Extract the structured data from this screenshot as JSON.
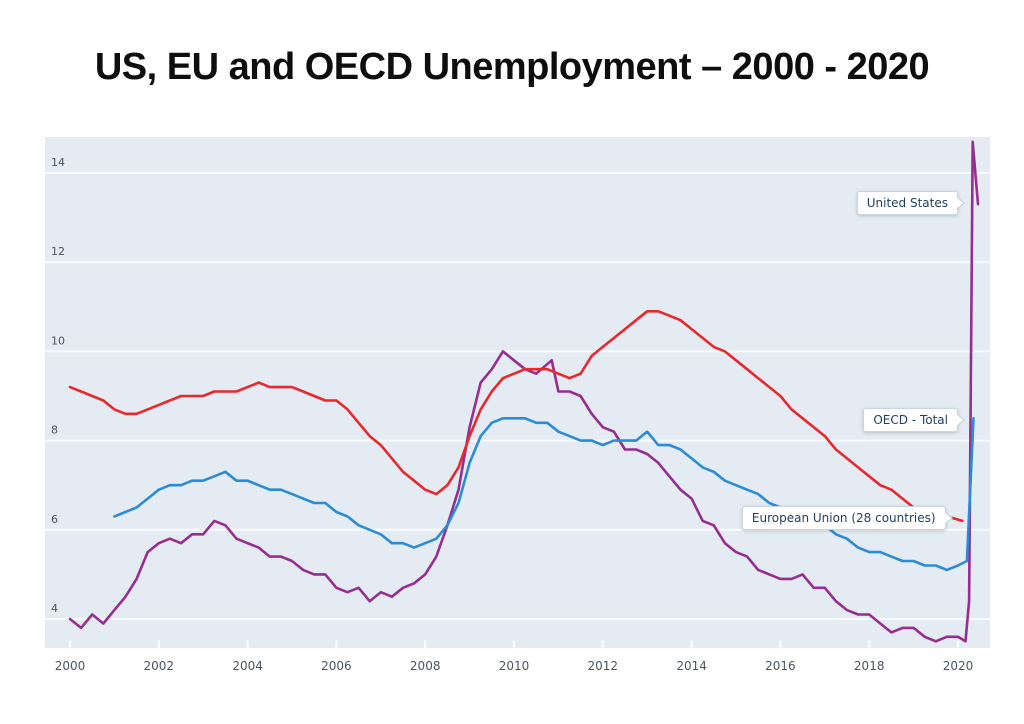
{
  "page": {
    "title": "US, EU and OECD Unemployment – 2000 - 2020"
  },
  "chart_data": {
    "type": "line",
    "title": "US, EU and OECD Unemployment – 2000 - 2020",
    "xlabel": "",
    "ylabel": "",
    "x_axis": {
      "ticks": [
        2000,
        2002,
        2004,
        2006,
        2008,
        2010,
        2012,
        2014,
        2016,
        2018,
        2020
      ],
      "min": 1999.44,
      "max": 2020.72
    },
    "y_axis": {
      "ticks": [
        4,
        6,
        8,
        10,
        12,
        14
      ],
      "min": 3.35,
      "max": 14.81
    },
    "grid": "horizontal white gridlines on light blue panel",
    "legend_position": "inline callout labels at right edge of lines",
    "colors": {
      "panel": "#e4ebf2",
      "gridline": "#f8fbfd",
      "tick_label": "#4a5560",
      "callout_text": "#1d3e5e"
    },
    "series": [
      {
        "name": "United States",
        "color": "#962d91",
        "points": [
          [
            2000.0,
            4.0
          ],
          [
            2000.25,
            3.8
          ],
          [
            2000.5,
            4.1
          ],
          [
            2000.75,
            3.9
          ],
          [
            2001.0,
            4.2
          ],
          [
            2001.25,
            4.5
          ],
          [
            2001.5,
            4.9
          ],
          [
            2001.75,
            5.5
          ],
          [
            2002.0,
            5.7
          ],
          [
            2002.25,
            5.8
          ],
          [
            2002.5,
            5.7
          ],
          [
            2002.75,
            5.9
          ],
          [
            2003.0,
            5.9
          ],
          [
            2003.25,
            6.2
          ],
          [
            2003.5,
            6.1
          ],
          [
            2003.75,
            5.8
          ],
          [
            2004.0,
            5.7
          ],
          [
            2004.25,
            5.6
          ],
          [
            2004.5,
            5.4
          ],
          [
            2004.75,
            5.4
          ],
          [
            2005.0,
            5.3
          ],
          [
            2005.25,
            5.1
          ],
          [
            2005.5,
            5.0
          ],
          [
            2005.75,
            5.0
          ],
          [
            2006.0,
            4.7
          ],
          [
            2006.25,
            4.6
          ],
          [
            2006.5,
            4.7
          ],
          [
            2006.75,
            4.4
          ],
          [
            2007.0,
            4.6
          ],
          [
            2007.25,
            4.5
          ],
          [
            2007.5,
            4.7
          ],
          [
            2007.75,
            4.8
          ],
          [
            2008.0,
            5.0
          ],
          [
            2008.25,
            5.4
          ],
          [
            2008.5,
            6.1
          ],
          [
            2008.75,
            6.9
          ],
          [
            2009.0,
            8.3
          ],
          [
            2009.25,
            9.3
          ],
          [
            2009.5,
            9.6
          ],
          [
            2009.75,
            10.0
          ],
          [
            2010.0,
            9.8
          ],
          [
            2010.25,
            9.6
          ],
          [
            2010.5,
            9.5
          ],
          [
            2010.85,
            9.8
          ],
          [
            2011.0,
            9.1
          ],
          [
            2011.25,
            9.1
          ],
          [
            2011.5,
            9.0
          ],
          [
            2011.75,
            8.6
          ],
          [
            2012.0,
            8.3
          ],
          [
            2012.25,
            8.2
          ],
          [
            2012.5,
            7.8
          ],
          [
            2012.75,
            7.8
          ],
          [
            2013.0,
            7.7
          ],
          [
            2013.25,
            7.5
          ],
          [
            2013.5,
            7.2
          ],
          [
            2013.75,
            6.9
          ],
          [
            2014.0,
            6.7
          ],
          [
            2014.25,
            6.2
          ],
          [
            2014.5,
            6.1
          ],
          [
            2014.75,
            5.7
          ],
          [
            2015.0,
            5.5
          ],
          [
            2015.25,
            5.4
          ],
          [
            2015.5,
            5.1
          ],
          [
            2015.75,
            5.0
          ],
          [
            2016.0,
            4.9
          ],
          [
            2016.25,
            4.9
          ],
          [
            2016.5,
            5.0
          ],
          [
            2016.75,
            4.7
          ],
          [
            2017.0,
            4.7
          ],
          [
            2017.25,
            4.4
          ],
          [
            2017.5,
            4.2
          ],
          [
            2017.75,
            4.1
          ],
          [
            2018.0,
            4.1
          ],
          [
            2018.25,
            3.9
          ],
          [
            2018.5,
            3.7
          ],
          [
            2018.75,
            3.8
          ],
          [
            2019.0,
            3.8
          ],
          [
            2019.25,
            3.6
          ],
          [
            2019.5,
            3.5
          ],
          [
            2019.75,
            3.6
          ],
          [
            2020.0,
            3.6
          ],
          [
            2020.17,
            3.5
          ],
          [
            2020.25,
            4.4
          ],
          [
            2020.33,
            14.7
          ],
          [
            2020.45,
            13.3
          ]
        ]
      },
      {
        "name": "OECD - Total",
        "color": "#2b8cd6",
        "points": [
          [
            2001.0,
            6.3
          ],
          [
            2001.25,
            6.4
          ],
          [
            2001.5,
            6.5
          ],
          [
            2001.75,
            6.7
          ],
          [
            2002.0,
            6.9
          ],
          [
            2002.25,
            7.0
          ],
          [
            2002.5,
            7.0
          ],
          [
            2002.75,
            7.1
          ],
          [
            2003.0,
            7.1
          ],
          [
            2003.25,
            7.2
          ],
          [
            2003.5,
            7.3
          ],
          [
            2003.75,
            7.1
          ],
          [
            2004.0,
            7.1
          ],
          [
            2004.25,
            7.0
          ],
          [
            2004.5,
            6.9
          ],
          [
            2004.75,
            6.9
          ],
          [
            2005.0,
            6.8
          ],
          [
            2005.25,
            6.7
          ],
          [
            2005.5,
            6.6
          ],
          [
            2005.75,
            6.6
          ],
          [
            2006.0,
            6.4
          ],
          [
            2006.25,
            6.3
          ],
          [
            2006.5,
            6.1
          ],
          [
            2006.75,
            6.0
          ],
          [
            2007.0,
            5.9
          ],
          [
            2007.25,
            5.7
          ],
          [
            2007.5,
            5.7
          ],
          [
            2007.75,
            5.6
          ],
          [
            2008.0,
            5.7
          ],
          [
            2008.25,
            5.8
          ],
          [
            2008.5,
            6.1
          ],
          [
            2008.75,
            6.6
          ],
          [
            2009.0,
            7.5
          ],
          [
            2009.25,
            8.1
          ],
          [
            2009.5,
            8.4
          ],
          [
            2009.75,
            8.5
          ],
          [
            2010.0,
            8.5
          ],
          [
            2010.25,
            8.5
          ],
          [
            2010.5,
            8.4
          ],
          [
            2010.75,
            8.4
          ],
          [
            2011.0,
            8.2
          ],
          [
            2011.25,
            8.1
          ],
          [
            2011.5,
            8.0
          ],
          [
            2011.75,
            8.0
          ],
          [
            2012.0,
            7.9
          ],
          [
            2012.25,
            8.0
          ],
          [
            2012.5,
            8.0
          ],
          [
            2012.75,
            8.0
          ],
          [
            2013.0,
            8.2
          ],
          [
            2013.25,
            7.9
          ],
          [
            2013.5,
            7.9
          ],
          [
            2013.75,
            7.8
          ],
          [
            2014.0,
            7.6
          ],
          [
            2014.25,
            7.4
          ],
          [
            2014.5,
            7.3
          ],
          [
            2014.75,
            7.1
          ],
          [
            2015.0,
            7.0
          ],
          [
            2015.25,
            6.9
          ],
          [
            2015.5,
            6.8
          ],
          [
            2015.75,
            6.6
          ],
          [
            2016.0,
            6.5
          ],
          [
            2016.25,
            6.4
          ],
          [
            2016.5,
            6.3
          ],
          [
            2016.75,
            6.2
          ],
          [
            2017.0,
            6.1
          ],
          [
            2017.25,
            5.9
          ],
          [
            2017.5,
            5.8
          ],
          [
            2017.75,
            5.6
          ],
          [
            2018.0,
            5.5
          ],
          [
            2018.25,
            5.5
          ],
          [
            2018.5,
            5.4
          ],
          [
            2018.75,
            5.3
          ],
          [
            2019.0,
            5.3
          ],
          [
            2019.25,
            5.2
          ],
          [
            2019.5,
            5.2
          ],
          [
            2019.75,
            5.1
          ],
          [
            2020.0,
            5.2
          ],
          [
            2020.2,
            5.3
          ],
          [
            2020.35,
            8.5
          ]
        ]
      },
      {
        "name": "European Union (28 countries)",
        "color": "#e8282d",
        "points": [
          [
            2000.0,
            9.2
          ],
          [
            2000.25,
            9.1
          ],
          [
            2000.5,
            9.0
          ],
          [
            2000.75,
            8.9
          ],
          [
            2001.0,
            8.7
          ],
          [
            2001.25,
            8.6
          ],
          [
            2001.5,
            8.6
          ],
          [
            2001.75,
            8.7
          ],
          [
            2002.0,
            8.8
          ],
          [
            2002.25,
            8.9
          ],
          [
            2002.5,
            9.0
          ],
          [
            2002.75,
            9.0
          ],
          [
            2003.0,
            9.0
          ],
          [
            2003.25,
            9.1
          ],
          [
            2003.5,
            9.1
          ],
          [
            2003.75,
            9.1
          ],
          [
            2004.0,
            9.2
          ],
          [
            2004.25,
            9.3
          ],
          [
            2004.5,
            9.2
          ],
          [
            2004.75,
            9.2
          ],
          [
            2005.0,
            9.2
          ],
          [
            2005.25,
            9.1
          ],
          [
            2005.5,
            9.0
          ],
          [
            2005.75,
            8.9
          ],
          [
            2006.0,
            8.9
          ],
          [
            2006.25,
            8.7
          ],
          [
            2006.5,
            8.4
          ],
          [
            2006.75,
            8.1
          ],
          [
            2007.0,
            7.9
          ],
          [
            2007.25,
            7.6
          ],
          [
            2007.5,
            7.3
          ],
          [
            2007.75,
            7.1
          ],
          [
            2008.0,
            6.9
          ],
          [
            2008.25,
            6.8
          ],
          [
            2008.5,
            7.0
          ],
          [
            2008.75,
            7.4
          ],
          [
            2009.0,
            8.1
          ],
          [
            2009.25,
            8.7
          ],
          [
            2009.5,
            9.1
          ],
          [
            2009.75,
            9.4
          ],
          [
            2010.0,
            9.5
          ],
          [
            2010.25,
            9.6
          ],
          [
            2010.5,
            9.6
          ],
          [
            2010.75,
            9.6
          ],
          [
            2011.0,
            9.5
          ],
          [
            2011.25,
            9.4
          ],
          [
            2011.5,
            9.5
          ],
          [
            2011.75,
            9.9
          ],
          [
            2012.0,
            10.1
          ],
          [
            2012.25,
            10.3
          ],
          [
            2012.5,
            10.5
          ],
          [
            2012.75,
            10.7
          ],
          [
            2013.0,
            10.9
          ],
          [
            2013.25,
            10.9
          ],
          [
            2013.5,
            10.8
          ],
          [
            2013.75,
            10.7
          ],
          [
            2014.0,
            10.5
          ],
          [
            2014.25,
            10.3
          ],
          [
            2014.5,
            10.1
          ],
          [
            2014.75,
            10.0
          ],
          [
            2015.0,
            9.8
          ],
          [
            2015.25,
            9.6
          ],
          [
            2015.5,
            9.4
          ],
          [
            2015.75,
            9.2
          ],
          [
            2016.0,
            9.0
          ],
          [
            2016.25,
            8.7
          ],
          [
            2016.5,
            8.5
          ],
          [
            2016.75,
            8.3
          ],
          [
            2017.0,
            8.1
          ],
          [
            2017.25,
            7.8
          ],
          [
            2017.5,
            7.6
          ],
          [
            2017.75,
            7.4
          ],
          [
            2018.0,
            7.2
          ],
          [
            2018.25,
            7.0
          ],
          [
            2018.5,
            6.9
          ],
          [
            2018.75,
            6.7
          ],
          [
            2019.0,
            6.5
          ],
          [
            2019.25,
            6.4
          ],
          [
            2019.5,
            6.3
          ],
          [
            2019.75,
            6.3
          ],
          [
            2020.1,
            6.2
          ]
        ]
      }
    ],
    "callouts": [
      {
        "text": "United States",
        "anchor_x": 2020.18,
        "anchor_y": 13.3
      },
      {
        "text": "OECD - Total",
        "anchor_x": 2020.18,
        "anchor_y": 8.45
      },
      {
        "text": "European Union (28 countries)",
        "anchor_x": 2019.9,
        "anchor_y": 6.25
      }
    ]
  }
}
